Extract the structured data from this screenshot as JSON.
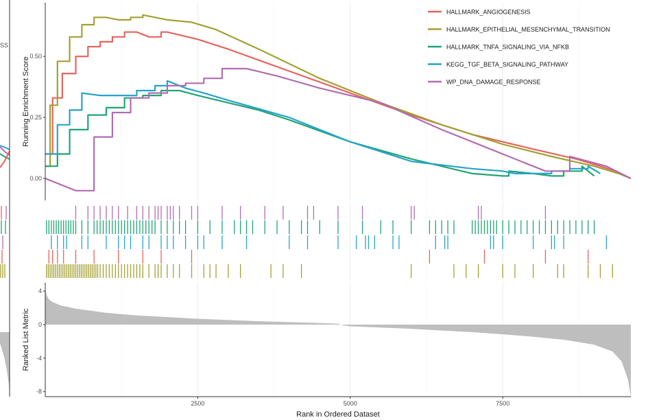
{
  "chart_data": [
    {
      "type": "line",
      "ylabel": "Running Enrichment Score",
      "xlim": [
        0,
        9600
      ],
      "ylim": [
        -0.09,
        0.72
      ],
      "yticks": [
        0.0,
        0.25,
        0.5
      ],
      "ytick_labels": [
        "0.00",
        "0.25",
        "0.50"
      ],
      "grid": "vertical",
      "legend_position": "top-right",
      "left_fragment_text": "SS",
      "colors": {
        "HALLMARK_ANGIOGENESIS": "#e7635d",
        "HALLMARK_EPITHELIAL_MESENCHYMAL_TRANSITION": "#a3a032",
        "HALLMARK_TNFA_SIGNALING_VIA_NFKB": "#1fa573",
        "KEGG_TGF_BETA_SIGNALING_PATHWAY": "#27a2cc",
        "WP_DNA_DAMAGE_RESPONSE": "#b16cb3"
      },
      "series": [
        {
          "name": "HALLMARK_ANGIOGENESIS",
          "color": "#e7635d",
          "x": [
            0,
            120,
            280,
            500,
            700,
            900,
            1100,
            1300,
            1500,
            1700,
            1900,
            2000,
            2500,
            3000,
            4000,
            5000,
            6000,
            7000,
            8000,
            8700,
            9100,
            9350,
            9600
          ],
          "y": [
            0.1,
            0.33,
            0.43,
            0.5,
            0.54,
            0.56,
            0.58,
            0.6,
            0.6,
            0.58,
            0.6,
            0.6,
            0.57,
            0.53,
            0.44,
            0.35,
            0.26,
            0.18,
            0.12,
            0.08,
            0.05,
            0.03,
            0.0
          ]
        },
        {
          "name": "HALLMARK_EPITHELIAL_MESENCHYMAL_TRANSITION",
          "color": "#a3a032",
          "x": [
            0,
            80,
            200,
            400,
            600,
            800,
            1000,
            1200,
            1400,
            1600,
            1800,
            2000,
            2400,
            2800,
            3500,
            4500,
            5500,
            6500,
            7500,
            8300,
            9000,
            9400,
            9600
          ],
          "y": [
            0.05,
            0.3,
            0.48,
            0.58,
            0.63,
            0.66,
            0.66,
            0.65,
            0.66,
            0.67,
            0.66,
            0.65,
            0.64,
            0.61,
            0.53,
            0.41,
            0.31,
            0.22,
            0.14,
            0.09,
            0.05,
            0.02,
            0.0
          ]
        },
        {
          "name": "HALLMARK_TNFA_SIGNALING_VIA_NFKB",
          "color": "#1fa573",
          "x": [
            0,
            200,
            400,
            700,
            1000,
            1300,
            1600,
            1900,
            2200,
            2500,
            3000,
            3500,
            4000,
            5000,
            6000,
            7000,
            7500,
            7600,
            8000,
            8300,
            8500,
            8800,
            9000
          ],
          "y": [
            0.05,
            0.1,
            0.2,
            0.26,
            0.29,
            0.33,
            0.34,
            0.36,
            0.36,
            0.34,
            0.31,
            0.28,
            0.24,
            0.15,
            0.08,
            0.02,
            0.01,
            0.03,
            0.02,
            0.01,
            0.03,
            0.05,
            0.01
          ]
        },
        {
          "name": "KEGG_TGF_BETA_SIGNALING_PATHWAY",
          "color": "#27a2cc",
          "x": [
            0,
            200,
            400,
            600,
            900,
            1200,
            1500,
            1800,
            2000,
            2300,
            2600,
            3000,
            4000,
            5000,
            6000,
            7000,
            7500,
            7700,
            8000,
            8300,
            8600,
            8900,
            9100
          ],
          "y": [
            0.1,
            0.22,
            0.28,
            0.35,
            0.34,
            0.34,
            0.36,
            0.38,
            0.4,
            0.37,
            0.35,
            0.32,
            0.25,
            0.15,
            0.07,
            0.04,
            0.03,
            0.02,
            0.02,
            0.03,
            0.04,
            0.05,
            0.02
          ]
        },
        {
          "name": "WP_DNA_DAMAGE_RESPONSE",
          "color": "#b16cb3",
          "x": [
            0,
            500,
            800,
            1100,
            1400,
            1700,
            2000,
            2300,
            2600,
            2900,
            3300,
            3800,
            4500,
            5500,
            6500,
            7300,
            7900,
            8200,
            8600,
            8900,
            9200,
            9600
          ],
          "y": [
            0.0,
            -0.05,
            0.17,
            0.27,
            0.33,
            0.35,
            0.38,
            0.39,
            0.41,
            0.45,
            0.45,
            0.42,
            0.37,
            0.31,
            0.2,
            0.12,
            0.06,
            0.03,
            0.09,
            0.07,
            0.05,
            0.0
          ]
        }
      ]
    },
    {
      "type": "barcode",
      "xlim": [
        0,
        9600
      ],
      "rows": [
        {
          "name": "WP_DNA_DAMAGE_RESPONSE",
          "color": "#b16cb3",
          "positions": [
            500,
            700,
            800,
            900,
            1000,
            1100,
            1200,
            1350,
            1500,
            1600,
            1700,
            1800,
            1850,
            1900,
            2000,
            2050,
            2100,
            2200,
            2400,
            2500,
            2900,
            3200,
            3600,
            3900,
            4300,
            4400,
            4800,
            5200,
            6000,
            6050,
            7100,
            7150,
            8200
          ]
        },
        {
          "name": "HALLMARK_TNFA_SIGNALING_VIA_NFKB",
          "color": "#1fa573",
          "positions": [
            20,
            60,
            100,
            140,
            180,
            220,
            260,
            300,
            340,
            380,
            420,
            460,
            500,
            600,
            700,
            800,
            850,
            900,
            950,
            1000,
            1050,
            1100,
            1150,
            1200,
            1250,
            1300,
            1350,
            1400,
            1450,
            1500,
            1550,
            1600,
            1650,
            1700,
            1750,
            1800,
            1900,
            2000,
            2100,
            2200,
            2300,
            2500,
            2700,
            2900,
            3100,
            3200,
            3300,
            3400,
            3600,
            3800,
            4000,
            4200,
            4300,
            4500,
            4800,
            5200,
            5500,
            5700,
            6000,
            6300,
            6400,
            6500,
            6600,
            6700,
            7000,
            7050,
            7100,
            7150,
            7200,
            7250,
            7300,
            7350,
            7400,
            7500,
            7600,
            7700,
            7800,
            7900,
            8000,
            8100,
            8200,
            8300,
            8400,
            8500,
            8600,
            8700,
            8800,
            8900,
            9000
          ]
        },
        {
          "name": "KEGG_TGF_BETA_SIGNALING_PATHWAY",
          "color": "#27a2cc",
          "positions": [
            100,
            200,
            300,
            350,
            600,
            700,
            1000,
            1200,
            1300,
            1400,
            1600,
            1700,
            1900,
            2000,
            2100,
            2300,
            2500,
            2600,
            2900,
            3300,
            4000,
            4300,
            4800,
            5100,
            5250,
            5300,
            5400,
            5700,
            5800,
            6400,
            6550,
            6600,
            7300,
            7350,
            7500,
            8000,
            8300,
            8350,
            8500,
            9200
          ]
        },
        {
          "name": "HALLMARK_ANGIOGENESIS",
          "color": "#e7635d",
          "positions": [
            60,
            120,
            200,
            300,
            500,
            800,
            1200,
            1600,
            1900,
            2400,
            6300,
            7200,
            8200,
            8900
          ]
        },
        {
          "name": "HALLMARK_EPITHELIAL_MESENCHYMAL_TRANSITION",
          "color": "#a3a032",
          "positions": [
            20,
            50,
            80,
            110,
            140,
            170,
            200,
            230,
            260,
            290,
            320,
            350,
            380,
            410,
            440,
            470,
            500,
            530,
            560,
            590,
            620,
            650,
            680,
            710,
            740,
            770,
            800,
            830,
            860,
            900,
            950,
            1000,
            1050,
            1100,
            1150,
            1200,
            1250,
            1300,
            1350,
            1400,
            1450,
            1500,
            1550,
            1600,
            1700,
            1800,
            1850,
            1900,
            2000,
            2100,
            2200,
            2400,
            2600,
            2700,
            2800,
            3000,
            3200,
            3700,
            3900,
            4200,
            6000,
            6700,
            6900,
            7100,
            7500,
            7700,
            8000,
            8400,
            8500,
            8900,
            9100,
            9300
          ]
        }
      ]
    },
    {
      "type": "area",
      "ylabel": "Ranked List Metric",
      "xlabel": "Rank in Ordered Dataset",
      "xlim": [
        0,
        9600
      ],
      "ylim": [
        -8.6,
        5
      ],
      "yticks": [
        4,
        0,
        -4,
        -8
      ],
      "ytick_labels": [
        "4",
        "0",
        "-4",
        "-8"
      ],
      "xticks": [
        2500,
        5000,
        7500
      ],
      "xtick_labels": [
        "2500",
        "5000",
        "7500"
      ],
      "fill_color": "#bebebe",
      "x": [
        0,
        20,
        60,
        120,
        250,
        500,
        1000,
        1500,
        2000,
        2500,
        3000,
        3500,
        4000,
        4500,
        4800,
        4900,
        5000,
        5500,
        6000,
        6500,
        7000,
        7500,
        8000,
        8500,
        9000,
        9300,
        9450,
        9550,
        9600
      ],
      "y": [
        4.3,
        3.6,
        3.0,
        2.7,
        2.3,
        1.9,
        1.4,
        1.1,
        0.9,
        0.7,
        0.55,
        0.4,
        0.3,
        0.2,
        0.1,
        -0.1,
        -0.2,
        -0.35,
        -0.5,
        -0.7,
        -0.9,
        -1.15,
        -1.45,
        -1.8,
        -2.4,
        -3.2,
        -4.4,
        -6.5,
        -8.6
      ]
    }
  ]
}
